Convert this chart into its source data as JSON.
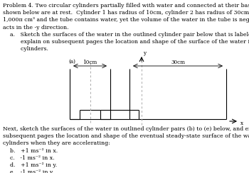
{
  "title_lines": [
    "Problem 4. Two circular cylinders partially filled with water and connected at their bases by a tube as",
    "shown below are at rest.  Cylinder 1 has radius of 10cm, cylinder 2 has radius of 30cm.  Water volume is",
    "1,000π cm³ and the tube contains water, yet the volume of the water in the tube is negligible.  Gravity",
    "acts in the -y direction.",
    "    a.   Sketch the surfaces of the water in the outlined cylinder pair below that is labeled (a) and",
    "          explain on subsequent pages the location and shape of the surface of the water in the two",
    "          cylinders."
  ],
  "bottom_lines": [
    "Next, sketch the surfaces of the water in outlined cylinder pairs (b) to (e) below, and explain on",
    "subsequent pages the location and shape of the eventual steady-state surface of the water in the two",
    "cylinders when they are accelerating:",
    "    b.   +1 ms⁻² in x.",
    "    c.   -1 ms⁻² in x.",
    "    d.   +1 ms⁻² in y.",
    "    e.   -1 ms⁻² in y."
  ],
  "label_a": "(a)",
  "label_10cm": "10cm",
  "label_30cm": "30cm",
  "label_y": "y",
  "label_x": "x",
  "bg_color": "#ffffff",
  "text_color": "#000000",
  "line_color": "#000000",
  "font_size_body": 5.6,
  "font_size_label": 5.2
}
